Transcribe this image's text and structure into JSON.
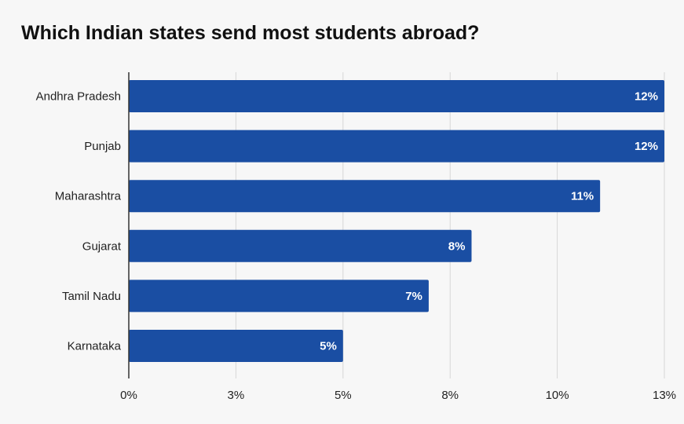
{
  "chart_data": {
    "type": "bar",
    "orientation": "horizontal",
    "title": "Which Indian states send most students abroad?",
    "categories": [
      "Andhra Pradesh",
      "Punjab",
      "Maharashtra",
      "Gujarat",
      "Tamil Nadu",
      "Karnataka"
    ],
    "values": [
      12.5,
      12.5,
      11.0,
      8.0,
      7.0,
      5.0
    ],
    "data_labels": [
      "12%",
      "12%",
      "11%",
      "8%",
      "7%",
      "5%"
    ],
    "xlim": [
      0,
      12.5
    ],
    "ticks": [
      0,
      2.5,
      5,
      7.5,
      10,
      12.5
    ],
    "tick_labels": [
      "0%",
      "3%",
      "5%",
      "8%",
      "10%",
      "13%"
    ],
    "xlabel": "",
    "ylabel": "",
    "grid": true,
    "bar_color": "#1a4ea3"
  }
}
